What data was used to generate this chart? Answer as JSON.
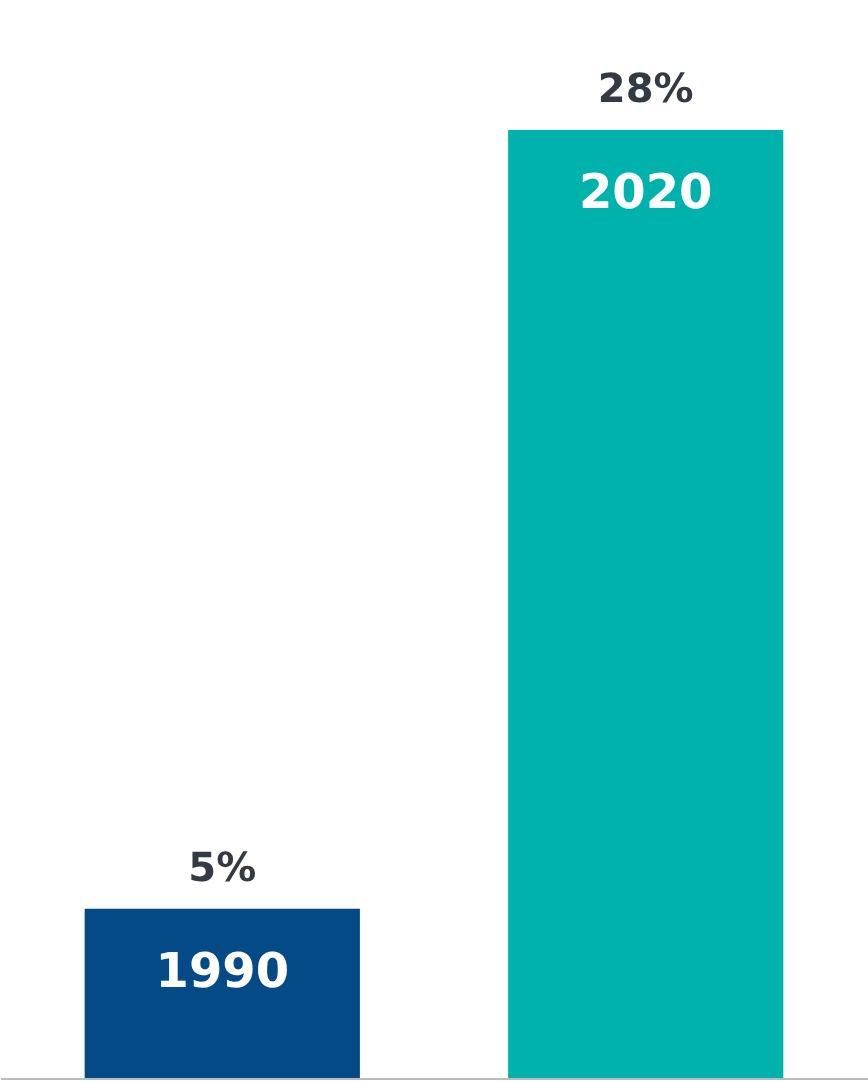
{
  "chart_data": {
    "type": "bar",
    "categories": [
      "1990",
      "2020"
    ],
    "values": [
      5,
      28
    ],
    "colors": [
      "#034a86",
      "#00b2ac"
    ],
    "value_labels": [
      "5%",
      "28%"
    ]
  }
}
